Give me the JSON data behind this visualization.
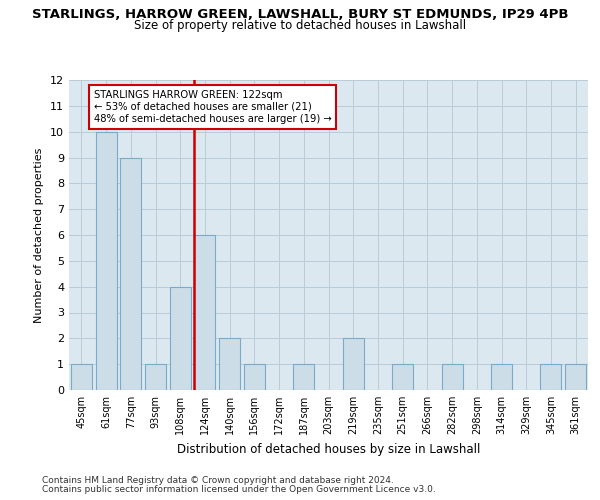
{
  "title": "STARLINGS, HARROW GREEN, LAWSHALL, BURY ST EDMUNDS, IP29 4PB",
  "subtitle": "Size of property relative to detached houses in Lawshall",
  "xlabel": "Distribution of detached houses by size in Lawshall",
  "ylabel": "Number of detached properties",
  "categories": [
    "45sqm",
    "61sqm",
    "77sqm",
    "93sqm",
    "108sqm",
    "124sqm",
    "140sqm",
    "156sqm",
    "172sqm",
    "187sqm",
    "203sqm",
    "219sqm",
    "235sqm",
    "251sqm",
    "266sqm",
    "282sqm",
    "298sqm",
    "314sqm",
    "329sqm",
    "345sqm",
    "361sqm"
  ],
  "values": [
    1,
    10,
    9,
    1,
    4,
    6,
    2,
    1,
    0,
    1,
    0,
    2,
    0,
    1,
    0,
    1,
    0,
    1,
    0,
    1,
    1
  ],
  "bar_color": "#ccdde8",
  "bar_edgecolor": "#7aaac8",
  "ref_idx": 5,
  "ref_line_color": "#cc0000",
  "ylim": [
    0,
    12
  ],
  "yticks": [
    0,
    1,
    2,
    3,
    4,
    5,
    6,
    7,
    8,
    9,
    10,
    11,
    12
  ],
  "annotation_text": "STARLINGS HARROW GREEN: 122sqm\n← 53% of detached houses are smaller (21)\n48% of semi-detached houses are larger (19) →",
  "annotation_box_facecolor": "#ffffff",
  "annotation_box_edgecolor": "#cc0000",
  "footer1": "Contains HM Land Registry data © Crown copyright and database right 2024.",
  "footer2": "Contains public sector information licensed under the Open Government Licence v3.0.",
  "title_fontsize": 9.5,
  "subtitle_fontsize": 8.5,
  "ylabel_fontsize": 8,
  "xlabel_fontsize": 8.5,
  "grid_color": "#b8ccd8",
  "bg_color": "#dce8f0"
}
